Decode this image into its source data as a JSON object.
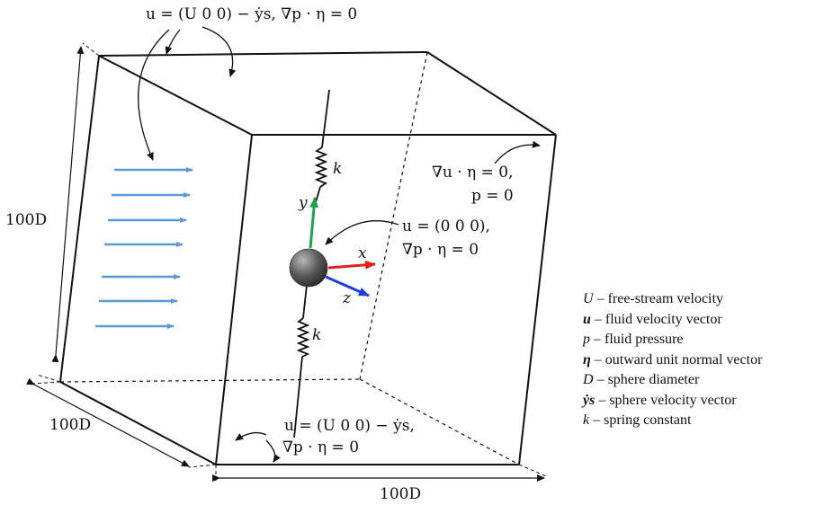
{
  "boundary_conditions": {
    "top": "u = (U 0 0) − ẏs, ∇p · η = 0",
    "outlet_line1": "∇u · η = 0,",
    "outlet_line2": "p = 0",
    "sphere_line1": "u = (0 0 0),",
    "sphere_line2": "∇p · η = 0",
    "bottom_line1": "u = (U 0 0) − ẏs,",
    "bottom_line2": "∇p · η = 0"
  },
  "dimensions": {
    "height": "100D",
    "depth": "100D",
    "width": "100D"
  },
  "axes": {
    "x": "x",
    "y": "y",
    "z": "z"
  },
  "springs": {
    "upper": "k",
    "lower": "k"
  },
  "legend": [
    {
      "symbol": "U",
      "text": " – free-stream velocity"
    },
    {
      "symbol": "u",
      "text": " – fluid velocity vector"
    },
    {
      "symbol": "p",
      "text": " – fluid pressure"
    },
    {
      "symbol": "η",
      "text": " – outward unit normal vector"
    },
    {
      "symbol": "D",
      "text": " – sphere diameter"
    },
    {
      "symbol": "ẏs",
      "text": " – sphere velocity vector"
    },
    {
      "symbol": "k",
      "text": " – spring constant"
    }
  ],
  "colors": {
    "flow_arrows": "#5b9bd5",
    "x_axis": "#e0201c",
    "y_axis": "#1aa34a",
    "z_axis": "#1f3fe0",
    "sphere": "#666666"
  }
}
